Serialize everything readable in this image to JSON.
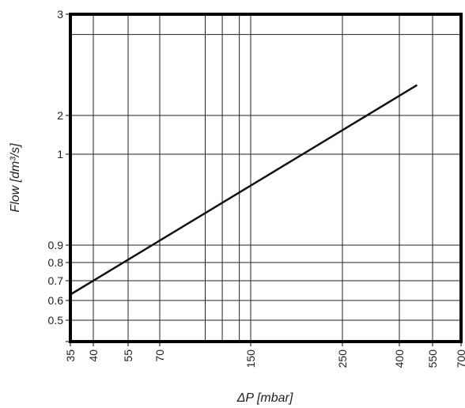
{
  "chart_data": {
    "type": "line",
    "title": "",
    "xlabel": "ΔP [mbar]",
    "ylabel": "Flow [dm³/s]",
    "grid": true,
    "x_ticks": [
      35,
      40,
      55,
      70,
      150,
      250,
      400,
      550,
      700
    ],
    "x_tick_labels": [
      "35",
      "40",
      "55",
      "70",
      "150",
      "250",
      "400",
      "550",
      "700"
    ],
    "x_minor_gridlines": [
      110,
      125,
      140
    ],
    "y_ticks": [
      0.5,
      0.6,
      0.7,
      0.8,
      0.9,
      1,
      2,
      3
    ],
    "y_tick_labels": [
      "0.5",
      "0.6",
      "0.7",
      "0.8",
      "0.9",
      "1",
      "2",
      "3"
    ],
    "y_minor_gridlines": [
      2.8
    ],
    "xlim": [
      35,
      700
    ],
    "ylim": [
      0.4,
      3
    ],
    "series": [
      {
        "x": [
          35,
          480
        ],
        "y": [
          0.63,
          2.3
        ]
      }
    ],
    "colors": {
      "line": "#111111",
      "grid": "#222222",
      "frame": "#000000"
    }
  }
}
